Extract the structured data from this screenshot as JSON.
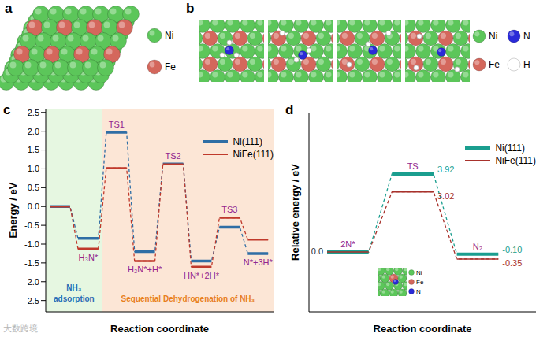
{
  "panels": {
    "a": {
      "label": "a",
      "legend": [
        {
          "text": "Ni",
          "color": "#5cc65a"
        },
        {
          "text": "Fe",
          "color": "#d4675c"
        }
      ]
    },
    "b": {
      "label": "b",
      "legend": [
        {
          "text": "Ni",
          "color": "#5cc65a"
        },
        {
          "text": "N",
          "color": "#2a2ad8"
        },
        {
          "text": "Fe",
          "color": "#d4675c"
        },
        {
          "text": "H",
          "color": "#ffffff"
        }
      ]
    },
    "d_inset": {
      "legend": [
        {
          "text": "Ni",
          "color": "#5cc65a"
        },
        {
          "text": "Fe",
          "color": "#d4675c"
        },
        {
          "text": "N",
          "color": "#2a2ad8"
        }
      ]
    }
  },
  "watermark": "大数跨境",
  "chart_data": [
    {
      "panel": "c",
      "type": "energy_diagram",
      "ylabel": "Energy / eV",
      "xlabel": "Reaction coordinate",
      "categories": [
        null,
        "H₃N*",
        "TS1",
        "H₂N*+H*",
        "TS2",
        "HN*+2H*",
        "TS3",
        "N*+3H*"
      ],
      "series": [
        {
          "name": "Ni(111)",
          "color": "#2f6ea5",
          "values": [
            0,
            -0.85,
            1.97,
            -1.2,
            1.13,
            -1.45,
            -0.55,
            -1.25
          ]
        },
        {
          "name": "NiFe(111)",
          "color": "#c0392b",
          "values": [
            0,
            -1.12,
            1.02,
            -1.45,
            1.12,
            -1.6,
            -0.3,
            -0.88
          ]
        }
      ],
      "ylim": [
        -2.8,
        2.6
      ],
      "yticks": [
        2.5,
        {
          "value": 2,
          "label": "2.0"
        },
        1.5,
        {
          "value": 1,
          "label": "1.0"
        },
        0.5,
        {
          "value": 0,
          "label": "0.0"
        },
        -0.5,
        {
          "value": -1,
          "label": "-1.0"
        },
        -1.5,
        {
          "value": -2,
          "label": "-2.0"
        },
        -2.5
      ],
      "regions": [
        {
          "label": [
            "NH₃",
            "adsorption"
          ],
          "color": "#e6f7e1"
        },
        {
          "label": [
            "Sequential Dehydrogenation of NH₃"
          ],
          "color": "#fce6d6"
        }
      ],
      "legend": "upper right",
      "tick_labels": "y"
    },
    {
      "panel": "d",
      "type": "energy_diagram",
      "ylabel": "Relative energy / eV",
      "xlabel": "Reaction coordinate",
      "categories": [
        "2N*",
        "TS",
        "N₂"
      ],
      "series": [
        {
          "name": "Ni(111)",
          "color": "#1a9e8f",
          "values": [
            0,
            3.92,
            -0.1
          ],
          "value_labels": [
            "0.0",
            "3.92",
            "-0.10"
          ]
        },
        {
          "name": "NiFe(111)",
          "color": "#a8322c",
          "values": [
            0,
            3.02,
            -0.35
          ],
          "value_labels": [
            null,
            "3.02",
            "-0.35"
          ]
        }
      ],
      "ylim": [
        -3,
        7
      ],
      "data_labels": true,
      "legend": "upper right",
      "tick_labels": false
    }
  ]
}
